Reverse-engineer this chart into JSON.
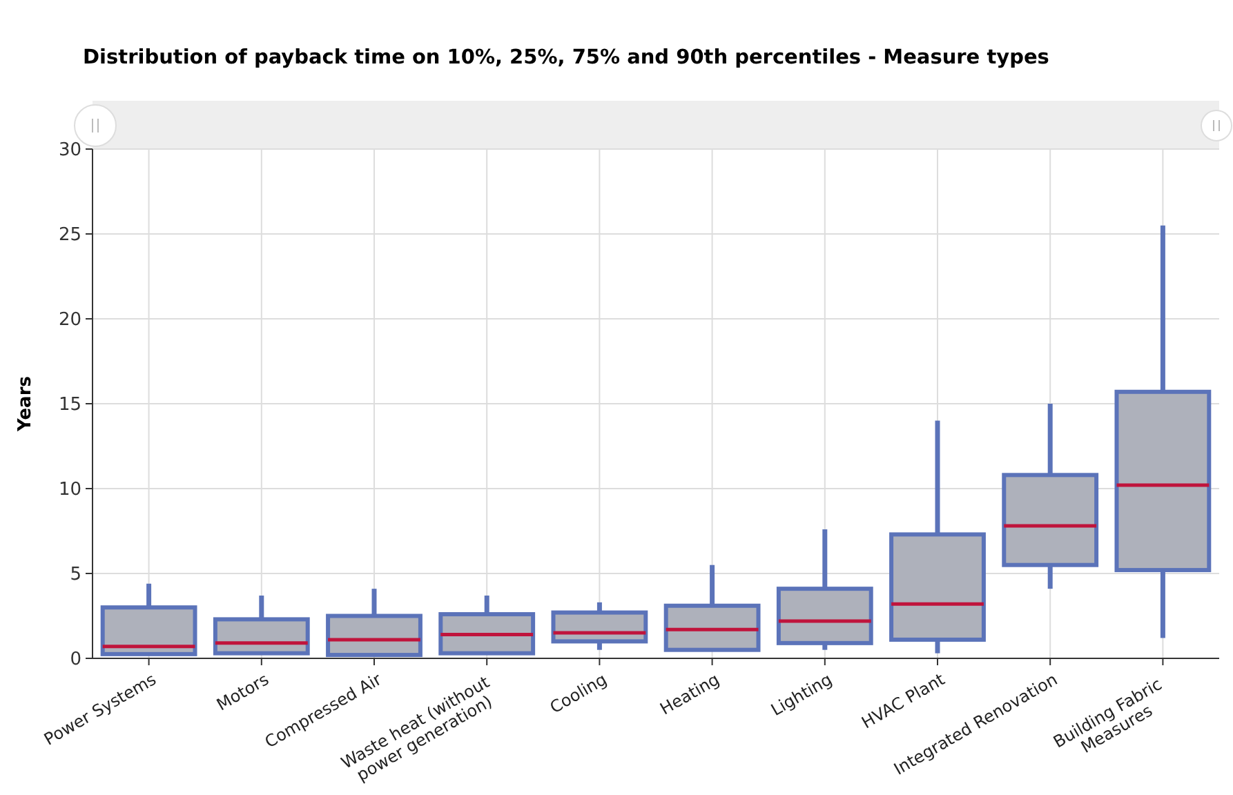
{
  "chart_data": {
    "type": "box",
    "title": "Distribution of payback time on 10%, 25%, 75% and 90th percentiles - Measure types",
    "ylabel": "Years",
    "categories": [
      "Power Systems",
      "Motors",
      "Compressed Air",
      "Waste heat (without power generation)",
      "Cooling",
      "Heating",
      "Lighting",
      "HVAC Plant",
      "Integrated Renovation",
      "Building Fabric Measures"
    ],
    "ylim": [
      0,
      30
    ],
    "yticks": [
      0,
      5,
      10,
      15,
      20,
      25,
      30
    ],
    "grid": true,
    "series": [
      {
        "color": "#5b73b9",
        "boxes": [
          {
            "low": null,
            "q1": 0.25,
            "median": 0.7,
            "q3": 3.0,
            "high": 4.4
          },
          {
            "low": null,
            "q1": 0.3,
            "median": 0.9,
            "q3": 2.3,
            "high": 3.7
          },
          {
            "low": null,
            "q1": 0.2,
            "median": 1.1,
            "q3": 2.5,
            "high": 4.1
          },
          {
            "low": null,
            "q1": 0.3,
            "median": 1.4,
            "q3": 2.6,
            "high": 3.7
          },
          {
            "low": 0.5,
            "q1": 1.0,
            "median": 1.5,
            "q3": 2.7,
            "high": 3.3
          },
          {
            "low": null,
            "q1": 0.5,
            "median": 1.7,
            "q3": 3.1,
            "high": 5.5
          },
          {
            "low": 0.5,
            "q1": 0.9,
            "median": 2.2,
            "q3": 4.1,
            "high": 7.6
          },
          {
            "low": 0.3,
            "q1": 1.1,
            "median": 3.2,
            "q3": 7.3,
            "high": 14.0
          },
          {
            "low": 4.1,
            "q1": 5.5,
            "median": 7.8,
            "q3": 10.8,
            "high": 15.0
          },
          {
            "low": 1.2,
            "q1": 5.2,
            "median": 10.2,
            "q3": 15.7,
            "high": 25.5
          }
        ]
      }
    ]
  }
}
